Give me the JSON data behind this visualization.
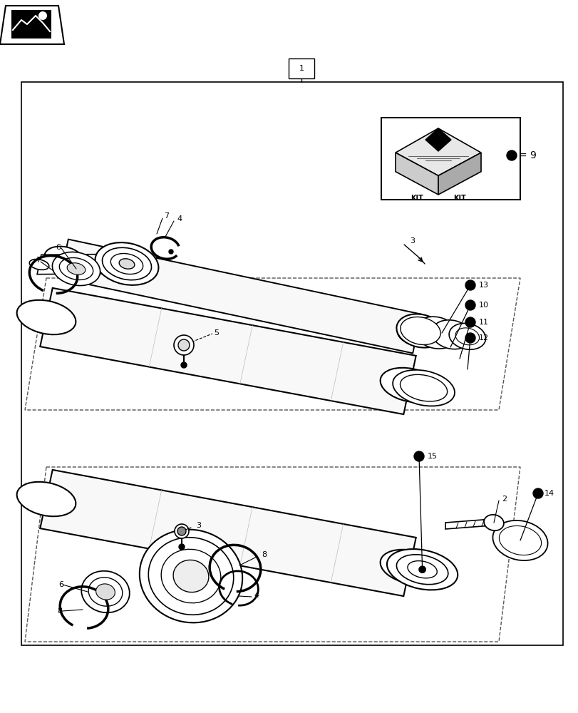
{
  "bg": "#ffffff",
  "fw": 8.12,
  "fh": 10.0,
  "dpi": 100
}
